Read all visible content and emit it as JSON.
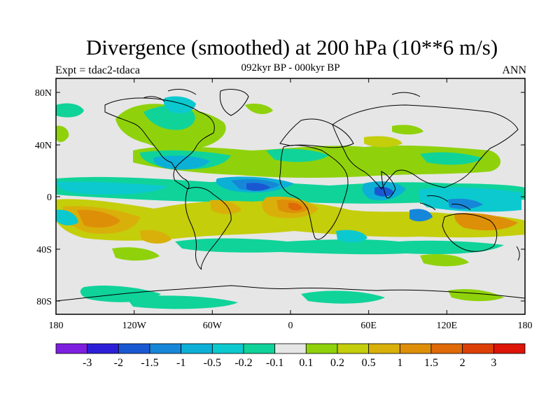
{
  "title": "Divergence (smoothed) at 200 hPa (10**6 m/s)",
  "expt_label": "Expt = tdac2-tdaca",
  "subtitle": "092kyr BP - 000kyr BP",
  "season": "ANN",
  "lon_ticks": [
    "180",
    "120W",
    "60W",
    "0",
    "60E",
    "120E",
    "180"
  ],
  "lat_ticks": [
    "80N",
    "40N",
    "0",
    "40S",
    "80S"
  ],
  "colorbar": {
    "labels": [
      "-3",
      "-2",
      "-1.5",
      "-1",
      "-0.5",
      "-0.2",
      "-0.1",
      "0.1",
      "0.2",
      "0.5",
      "1",
      "1.5",
      "2",
      "3"
    ],
    "colors": [
      "#7e1fe0",
      "#2c1ed8",
      "#1a58d2",
      "#1687d8",
      "#0cb0d6",
      "#0cc9cf",
      "#10d39a",
      "#e6e6e6",
      "#8fd20c",
      "#c4ce0b",
      "#d9b00a",
      "#de8f08",
      "#df6a07",
      "#dd4006",
      "#dd1407"
    ]
  },
  "colors": {
    "land_outline": "#000000",
    "neutral": "#e6e6e6"
  }
}
